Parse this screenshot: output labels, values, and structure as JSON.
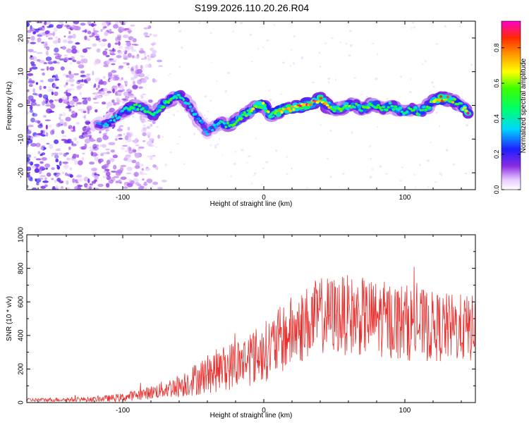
{
  "title": "S199.2026.110.20.26.R04",
  "chart_data": [
    {
      "type": "heatmap",
      "name": "spectrogram",
      "xlabel": "Height of straight line (km)",
      "ylabel": "Frequency (Hz)",
      "xlim": [
        -168,
        150
      ],
      "ylim": [
        -25,
        25
      ],
      "xticks": [
        -100,
        0,
        100
      ],
      "yticks": [
        -20,
        -10,
        0,
        10,
        20
      ],
      "colorbar": {
        "label": "Normalized spectral amplitude",
        "range": [
          0,
          0.95
        ],
        "ticks": [
          0.0,
          0.2,
          0.4,
          0.6,
          0.8
        ]
      },
      "ridge": {
        "x": [
          -118,
          -110,
          -100,
          -92,
          -85,
          -78,
          -72,
          -65,
          -60,
          -55,
          -50,
          -45,
          -40,
          -35,
          -30,
          -25,
          -20,
          -15,
          -10,
          -5,
          0,
          5,
          10,
          15,
          20,
          25,
          30,
          35,
          40,
          45,
          50,
          55,
          60,
          65,
          70,
          75,
          80,
          85,
          90,
          95,
          100,
          105,
          110,
          115,
          120,
          125,
          130,
          135,
          140,
          145
        ],
        "y": [
          -6,
          -5,
          -2,
          0,
          -1,
          -3,
          0,
          2,
          3,
          1,
          -2,
          -5,
          -8,
          -6,
          -5,
          -6,
          -5,
          -3,
          -2,
          0,
          0,
          -3,
          -2,
          -1,
          -1,
          0,
          0,
          1,
          2,
          0,
          -1,
          -1,
          0,
          0,
          -1,
          0,
          0,
          -1,
          0,
          -1,
          -2,
          -1,
          -2,
          -1,
          1,
          2,
          2,
          1,
          0,
          -2
        ],
        "amplitude": [
          0.3,
          0.35,
          0.4,
          0.5,
          0.45,
          0.45,
          0.5,
          0.5,
          0.45,
          0.4,
          0.35,
          0.35,
          0.3,
          0.35,
          0.4,
          0.5,
          0.6,
          0.55,
          0.6,
          0.65,
          0.65,
          0.6,
          0.7,
          0.75,
          0.8,
          0.85,
          0.9,
          0.85,
          0.8,
          0.65,
          0.6,
          0.55,
          0.55,
          0.5,
          0.5,
          0.55,
          0.5,
          0.45,
          0.5,
          0.45,
          0.45,
          0.5,
          0.5,
          0.5,
          0.55,
          0.85,
          0.8,
          0.6,
          0.5,
          0.9
        ]
      },
      "noise_region": "x < -90 km, scattered low-amplitude purple speckle"
    },
    {
      "type": "line",
      "name": "snr",
      "xlabel": "Height of straight line (km)",
      "ylabel": "SNR (10 * v/v)",
      "xlim": [
        -168,
        150
      ],
      "ylim": [
        0,
        1000
      ],
      "xticks": [
        -100,
        0,
        100
      ],
      "yticks": [
        0,
        200,
        400,
        600,
        800,
        1000
      ],
      "color": "#e8302e",
      "envelope": {
        "x": [
          -168,
          -120,
          -100,
          -80,
          -60,
          -40,
          -20,
          0,
          20,
          40,
          60,
          80,
          100,
          120,
          150
        ],
        "mean": [
          15,
          20,
          30,
          60,
          100,
          170,
          230,
          300,
          420,
          520,
          520,
          500,
          480,
          450,
          440
        ],
        "spread": [
          10,
          15,
          25,
          40,
          70,
          120,
          150,
          180,
          220,
          230,
          240,
          230,
          230,
          210,
          200
        ]
      }
    }
  ]
}
